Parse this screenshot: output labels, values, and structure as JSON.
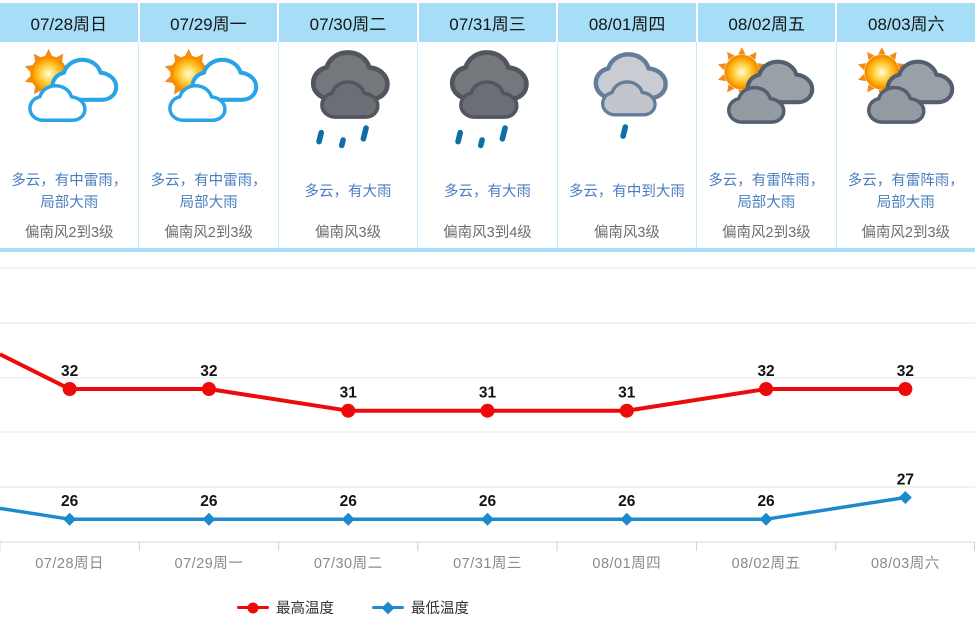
{
  "forecast": {
    "days": [
      {
        "date": "07/28周日",
        "icon": "sun-white-clouds-icon",
        "desc": "多云，有中雷雨，\n局部大雨",
        "wind": "偏南风2到3级"
      },
      {
        "date": "07/29周一",
        "icon": "sun-white-clouds-icon",
        "desc": "多云，有中雷雨，\n局部大雨",
        "wind": "偏南风2到3级"
      },
      {
        "date": "07/30周二",
        "icon": "dark-clouds-heavy-rain-icon",
        "desc": "多云，有大雨",
        "wind": "偏南风3级"
      },
      {
        "date": "07/31周三",
        "icon": "dark-clouds-heavy-rain-icon",
        "desc": "多云，有大雨",
        "wind": "偏南风3到4级"
      },
      {
        "date": "08/01周四",
        "icon": "silver-cloud-rain-icon",
        "desc": "多云，有中到大雨",
        "wind": "偏南风3级"
      },
      {
        "date": "08/02周五",
        "icon": "sun-gray-clouds-icon",
        "desc": "多云，有雷阵雨，\n局部大雨",
        "wind": "偏南风2到3级"
      },
      {
        "date": "08/03周六",
        "icon": "sun-gray-clouds-icon",
        "desc": "多云，有雷阵雨，\n局部大雨",
        "wind": "偏南风2到3级"
      }
    ]
  },
  "chart_data": {
    "type": "line",
    "categories": [
      "07/28周日",
      "07/29周一",
      "07/30周二",
      "07/31周三",
      "08/01周四",
      "08/02周五",
      "08/03周六"
    ],
    "series": [
      {
        "name": "最高温度",
        "color": "#ee0a0a",
        "marker": "circle",
        "values": [
          32,
          32,
          31,
          31,
          31,
          32,
          32
        ],
        "lead_in_from_offscreen": 33.6
      },
      {
        "name": "最低温度",
        "color": "#1d8acb",
        "marker": "diamond",
        "values": [
          26,
          26,
          26,
          26,
          26,
          26,
          27
        ],
        "lead_in_from_offscreen": 26.5
      }
    ],
    "title": "",
    "xlabel": "",
    "ylabel": "",
    "y_axis_labels_visible": false,
    "grid": true,
    "value_labels": true,
    "legend_position": "bottom"
  },
  "colors": {
    "header_bg": "#a6def7",
    "column_separator": "#c7e9fa",
    "desc_text": "#4a7ec0",
    "wind_text": "#6e6e6e",
    "high_temp_line": "#ee0a0a",
    "low_temp_line": "#1d8acb",
    "gridline": "#e4e4e4",
    "axis_line": "#d8d8d8",
    "tick": "#b9d6e6",
    "x_label_text": "#8a8a8a",
    "value_label_text": "#141414",
    "rain_drop": "#0d6ea8"
  }
}
